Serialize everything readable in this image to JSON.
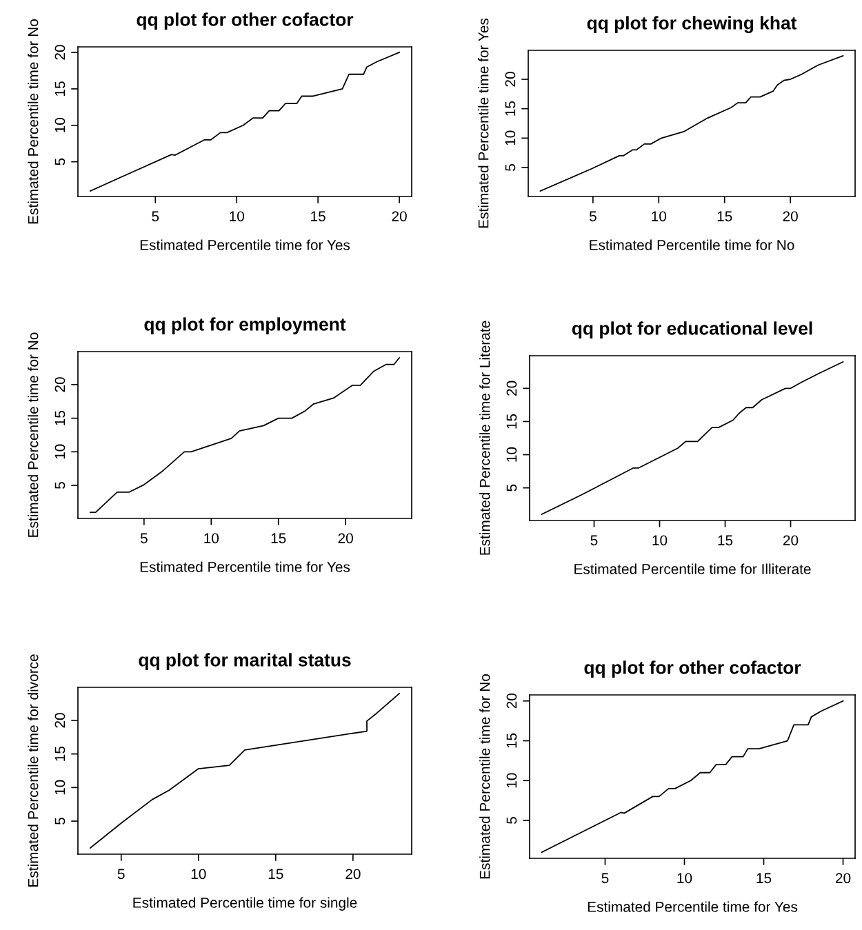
{
  "chart_data": [
    {
      "type": "line",
      "title": "qq plot for other cofactor",
      "xlabel": "Estimated Percentile time for Yes",
      "ylabel": "Estimated Percentile time for No",
      "x": [
        1,
        3.1,
        6,
        6.2,
        8,
        8.4,
        9,
        9.4,
        10.4,
        11,
        11.6,
        12,
        12.6,
        13,
        13.7,
        14,
        14.7,
        16.5,
        16.9,
        17.8,
        18,
        18.6,
        20
      ],
      "series": [
        {
          "color": "#000000",
          "values": [
            1,
            3.1,
            6,
            5.9,
            8,
            8,
            9,
            9,
            10,
            11,
            11,
            12,
            12,
            13,
            13,
            14,
            14,
            15,
            17,
            17,
            18,
            18.7,
            20
          ]
        }
      ],
      "xlim": [
        0.24,
        20.76
      ],
      "ylim": [
        0.24,
        20.76
      ],
      "xticks": [
        5,
        10,
        15,
        20
      ],
      "yticks": [
        5,
        10,
        15,
        20
      ]
    },
    {
      "type": "line",
      "title": "qq plot for chewing khat",
      "xlabel": "Estimated Percentile time for No",
      "ylabel": "Estimated Percentile time for Yes",
      "x": [
        1,
        4.9,
        7,
        7.3,
        8,
        8.3,
        8.9,
        9.4,
        10.2,
        11.9,
        13.7,
        15.5,
        16,
        16.6,
        17,
        17.7,
        18.7,
        19,
        19.5,
        20,
        20.9,
        22.1,
        24
      ],
      "series": [
        {
          "color": "#000000",
          "values": [
            1,
            4.8,
            7,
            7,
            8,
            8,
            9,
            9,
            10,
            11.1,
            13.4,
            15.2,
            16,
            16,
            17,
            17,
            18,
            19,
            19.8,
            20,
            20.9,
            22.4,
            24
          ]
        }
      ],
      "xlim": [
        0.08,
        24.92
      ],
      "ylim": [
        0.08,
        24.92
      ],
      "xticks": [
        5,
        10,
        15,
        20
      ],
      "yticks": [
        5,
        10,
        15,
        20
      ]
    },
    {
      "type": "line",
      "title": "qq plot for employment",
      "xlabel": "Estimated Percentile time for Yes",
      "ylabel": "Estimated Percentile time for No",
      "x": [
        1,
        1.4,
        3,
        3.9,
        5,
        6.3,
        8,
        8.5,
        11.5,
        12.1,
        13.9,
        15,
        16,
        17,
        17.6,
        19.1,
        20.5,
        21.1,
        22.1,
        23,
        23.6,
        24
      ],
      "series": [
        {
          "color": "#000000",
          "values": [
            1,
            1,
            4,
            4,
            5.1,
            7,
            10,
            10,
            12,
            13.1,
            13.9,
            15,
            15,
            16.1,
            17.1,
            18,
            19.9,
            19.9,
            22,
            23,
            23,
            24
          ]
        }
      ],
      "xlim": [
        0.08,
        24.92
      ],
      "ylim": [
        0.08,
        24.92
      ],
      "xticks": [
        5,
        10,
        15,
        20
      ],
      "yticks": [
        5,
        10,
        15,
        20
      ]
    },
    {
      "type": "line",
      "title": "qq plot for educational level",
      "xlabel": "Estimated Percentile time for Illiterate",
      "ylabel": "Estimated Percentile time for Literate",
      "x": [
        1,
        4.1,
        8,
        8.4,
        11.4,
        12,
        12.9,
        14,
        14.5,
        15.6,
        16.1,
        16.6,
        17.1,
        17.8,
        19.6,
        20,
        20.9,
        22.2,
        24
      ],
      "series": [
        {
          "color": "#000000",
          "values": [
            1,
            4,
            8,
            8,
            11,
            12,
            12,
            14.1,
            14.1,
            15.2,
            16.3,
            17.1,
            17.1,
            18.3,
            20,
            20,
            21,
            22.3,
            24
          ]
        }
      ],
      "xlim": [
        0.08,
        24.92
      ],
      "ylim": [
        0.08,
        24.92
      ],
      "xticks": [
        5,
        10,
        15,
        20
      ],
      "yticks": [
        5,
        10,
        15,
        20
      ]
    },
    {
      "type": "line",
      "title": "qq plot for marital status",
      "xlabel": "Estimated Percentile time for single",
      "ylabel": "Estimated Percentile time for divorce",
      "x": [
        3,
        5,
        7,
        8.1,
        10,
        12,
        13,
        20.9,
        20.9,
        21.5,
        23
      ],
      "series": [
        {
          "color": "#000000",
          "values": [
            1,
            4.7,
            8.2,
            9.6,
            12.8,
            13.3,
            15.6,
            18.4,
            19.9,
            21,
            24
          ]
        }
      ],
      "xlim": [
        2.2,
        23.8
      ],
      "ylim": [
        0.08,
        24.92
      ],
      "xticks": [
        5,
        10,
        15,
        20
      ],
      "yticks": [
        5,
        10,
        15,
        20
      ]
    },
    {
      "type": "line",
      "title": "qq plot for other cofactor",
      "xlabel": "Estimated Percentile time for Yes",
      "ylabel": "Estimated Percentile time for No",
      "x": [
        1,
        3.1,
        6,
        6.2,
        8,
        8.4,
        9,
        9.4,
        10.4,
        11,
        11.6,
        12,
        12.6,
        13,
        13.7,
        14,
        14.7,
        16.5,
        16.9,
        17.8,
        18,
        18.6,
        20
      ],
      "series": [
        {
          "color": "#000000",
          "values": [
            1,
            3.1,
            6,
            5.9,
            8,
            8,
            9,
            9,
            10,
            11,
            11,
            12,
            12,
            13,
            13,
            14,
            14,
            15,
            17,
            17,
            18,
            18.7,
            20
          ]
        }
      ],
      "xlim": [
        0.24,
        20.76
      ],
      "ylim": [
        0.24,
        20.76
      ],
      "xticks": [
        5,
        10,
        15,
        20
      ],
      "yticks": [
        5,
        10,
        15,
        20
      ]
    }
  ]
}
